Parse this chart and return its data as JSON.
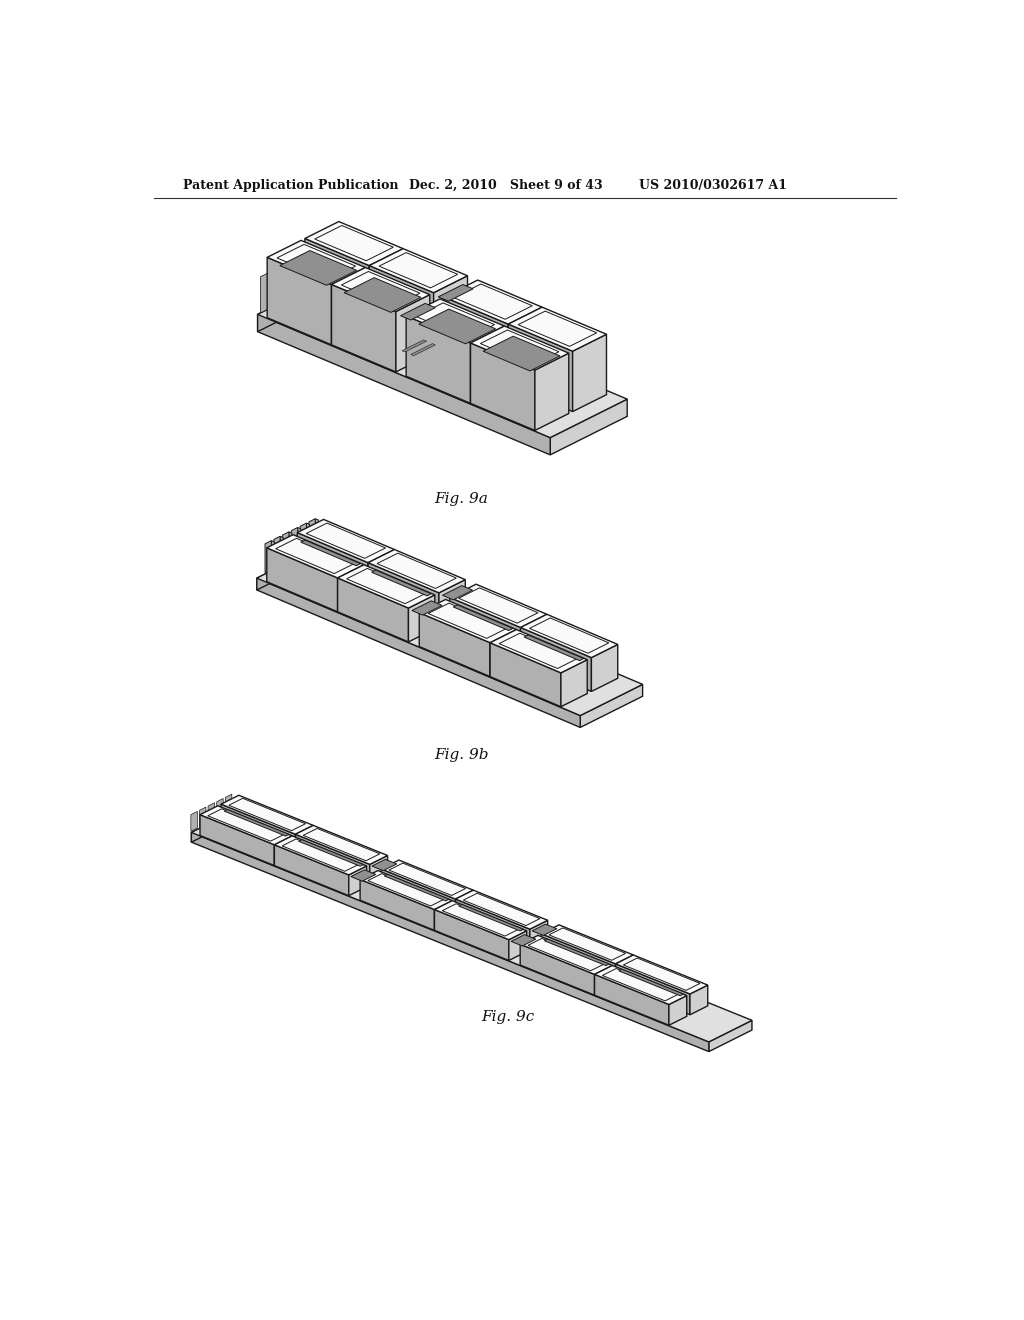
{
  "bg_color": "#ffffff",
  "header_left": "Patent Application Publication",
  "header_mid": "Dec. 2, 2010   Sheet 9 of 43",
  "header_right": "US 2010/0302617 A1",
  "fig_labels": [
    "Fig. 9a",
    "Fig. 9b",
    "Fig. 9c"
  ],
  "line_color": "#1a1a1a",
  "fill_top": "#f0f0f0",
  "fill_top_bright": "#fafafa",
  "fill_side_dark": "#b0b0b0",
  "fill_side_mid": "#d0d0d0",
  "fill_base_top": "#e0e0e0",
  "fill_base_side": "#c0c0c0",
  "hinge_color": "#909090",
  "lw_main": 1.0,
  "lw_inner": 0.7
}
